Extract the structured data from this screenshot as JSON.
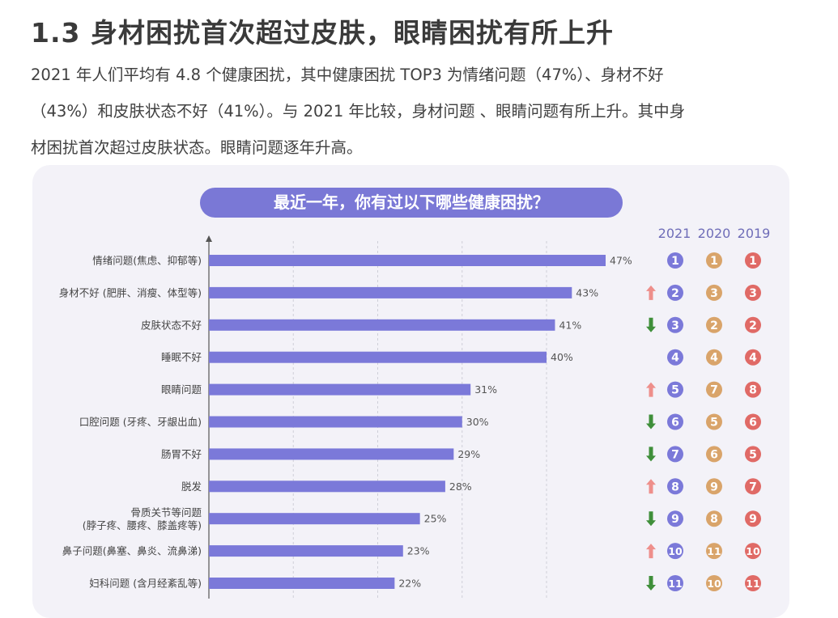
{
  "heading": "1.3 身材困扰首次超过皮肤，眼睛困扰有所上升",
  "intro_lines": [
    "2021 年人们平均有  4.8  个健康困扰，其中健康困扰 TOP3 为情绪问题（47%）、身材不好",
    "（43%）和皮肤状态不好（41%）。与 2021 年比较，身材问题 、眼睛问题有所上升。其中身",
    "材困扰首次超过皮肤状态。眼睛问题逐年升高。"
  ],
  "colors": {
    "bar": "#7b79d9",
    "rank_2021": "#7b79d9",
    "rank_2020": "#d9a46a",
    "rank_2019": "#e06a66",
    "arrow_up": "#ee8f8b",
    "arrow_down": "#3f8f3a"
  },
  "chart_data": {
    "type": "bar",
    "orientation": "horizontal",
    "title": "最近一年，你有过以下哪些健康困扰？",
    "year_headers": [
      "2021",
      "2020",
      "2019"
    ],
    "categories": [
      [
        "情绪问题(焦虑、抑郁等)"
      ],
      [
        "身材不好 (肥胖、消瘦、体型等)"
      ],
      [
        "皮肤状态不好"
      ],
      [
        "睡眠不好"
      ],
      [
        "眼睛问题"
      ],
      [
        "口腔问题 (牙疼、牙龈出血)"
      ],
      [
        "肠胃不好"
      ],
      [
        "脱发"
      ],
      [
        "骨质关节等问题",
        "(脖子疼、腰疼、膝盖疼等)"
      ],
      [
        "鼻子问题(鼻塞、鼻炎、流鼻涕)"
      ],
      [
        "妇科问题 (含月经紊乱等)"
      ]
    ],
    "values": [
      47,
      43,
      41,
      40,
      31,
      30,
      29,
      28,
      25,
      23,
      22
    ],
    "value_labels": [
      "47%",
      "43%",
      "41%",
      "40%",
      "31%",
      "30%",
      "29%",
      "28%",
      "25%",
      "23%",
      "22%"
    ],
    "xlim": [
      0,
      50
    ],
    "grid": "vertical-dashed",
    "ranks_2021": [
      1,
      2,
      3,
      4,
      5,
      6,
      7,
      8,
      9,
      10,
      11
    ],
    "ranks_2020": [
      1,
      3,
      2,
      4,
      7,
      5,
      6,
      9,
      8,
      11,
      10
    ],
    "ranks_2019": [
      1,
      3,
      2,
      4,
      8,
      6,
      5,
      7,
      9,
      10,
      11
    ],
    "trend": [
      "",
      "up",
      "down",
      "",
      "up",
      "down",
      "down",
      "up",
      "down",
      "up",
      "down"
    ]
  }
}
